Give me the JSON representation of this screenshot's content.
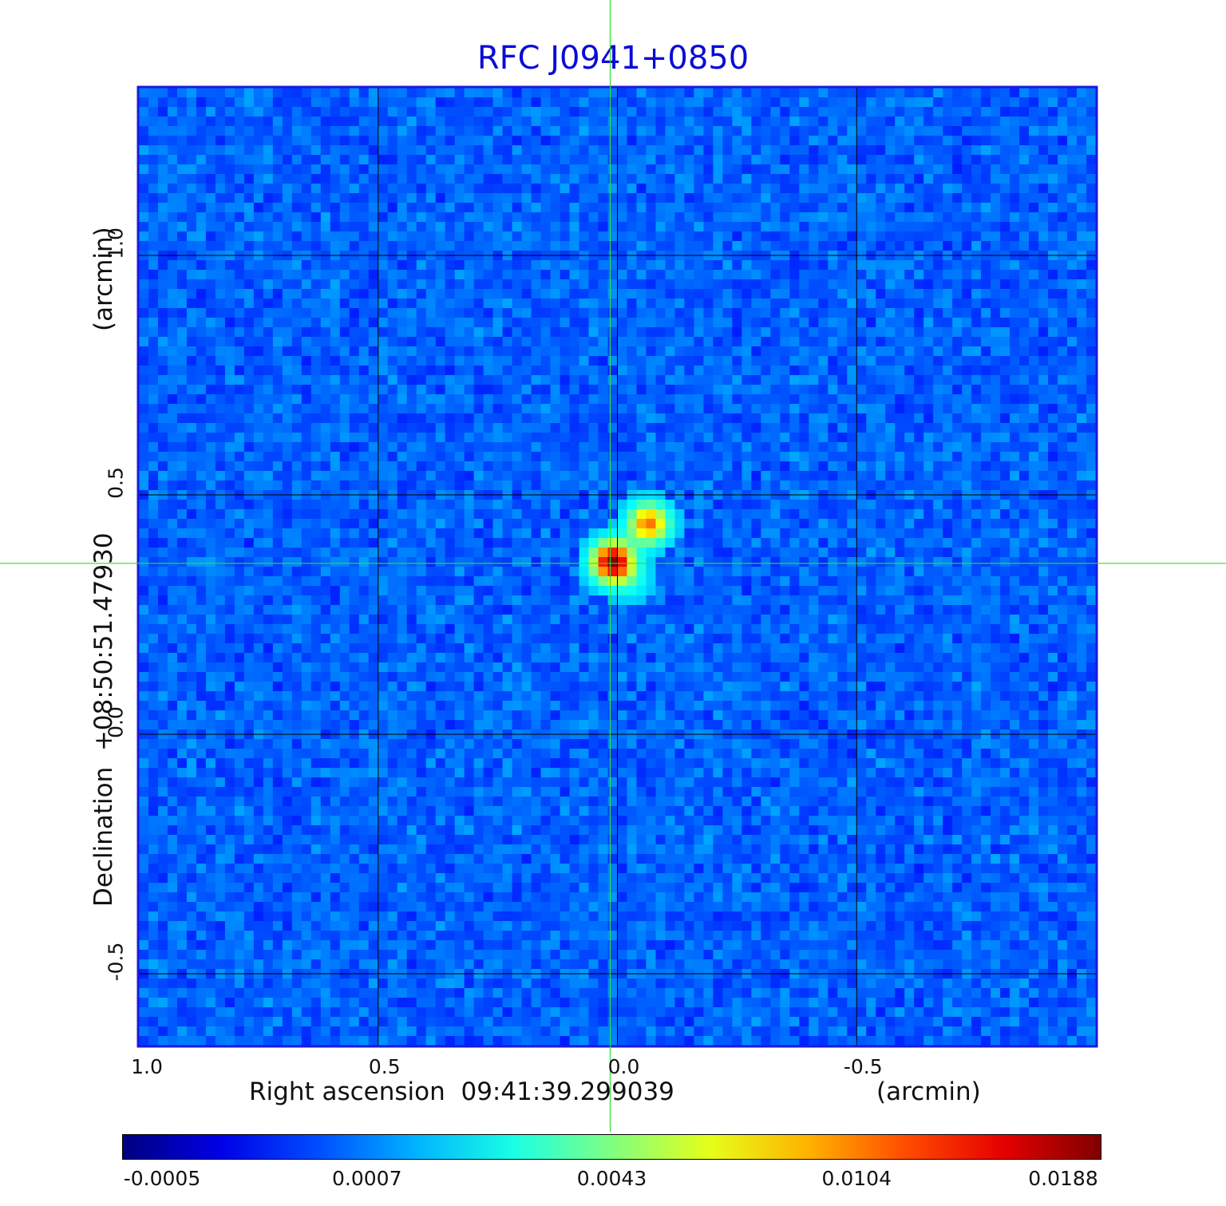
{
  "chart_data": {
    "type": "heatmap",
    "title": "RFC J0941+0850",
    "xlabel": "Right ascension  09:41:39.299039",
    "xunit": "(arcmin)",
    "ylabel": "Declination  +08:50:51.47930",
    "yunit": "(arcmin)",
    "x_range": [
      1.0,
      -1.0
    ],
    "y_range": [
      -0.65,
      1.35
    ],
    "x_ticks": [
      {
        "value": 1.0,
        "label": "1.0"
      },
      {
        "value": 0.5,
        "label": "0.5"
      },
      {
        "value": 0.0,
        "label": "0.0"
      },
      {
        "value": -0.5,
        "label": "-0.5"
      }
    ],
    "y_ticks": [
      {
        "value": 1.0,
        "label": "1.0"
      },
      {
        "value": 0.5,
        "label": "0.5"
      },
      {
        "value": 0.0,
        "label": "0.0"
      },
      {
        "value": -0.5,
        "label": "-0.5"
      }
    ],
    "grid": true,
    "crosshair": {
      "x": 0.015,
      "y": 0.357,
      "color": "#33dd33"
    },
    "colormap": "jet",
    "colorbar": {
      "position": "bottom",
      "labels": [
        "-0.0005",
        "0.0007",
        "0.0043",
        "0.0104",
        "0.0188"
      ]
    },
    "sources": [
      {
        "x": 0.01,
        "y": 0.36,
        "peak": 0.0188
      },
      {
        "x": -0.065,
        "y": 0.44,
        "peak": 0.0125
      },
      {
        "x": -0.03,
        "y": 0.32,
        "peak": 0.0022
      }
    ]
  }
}
